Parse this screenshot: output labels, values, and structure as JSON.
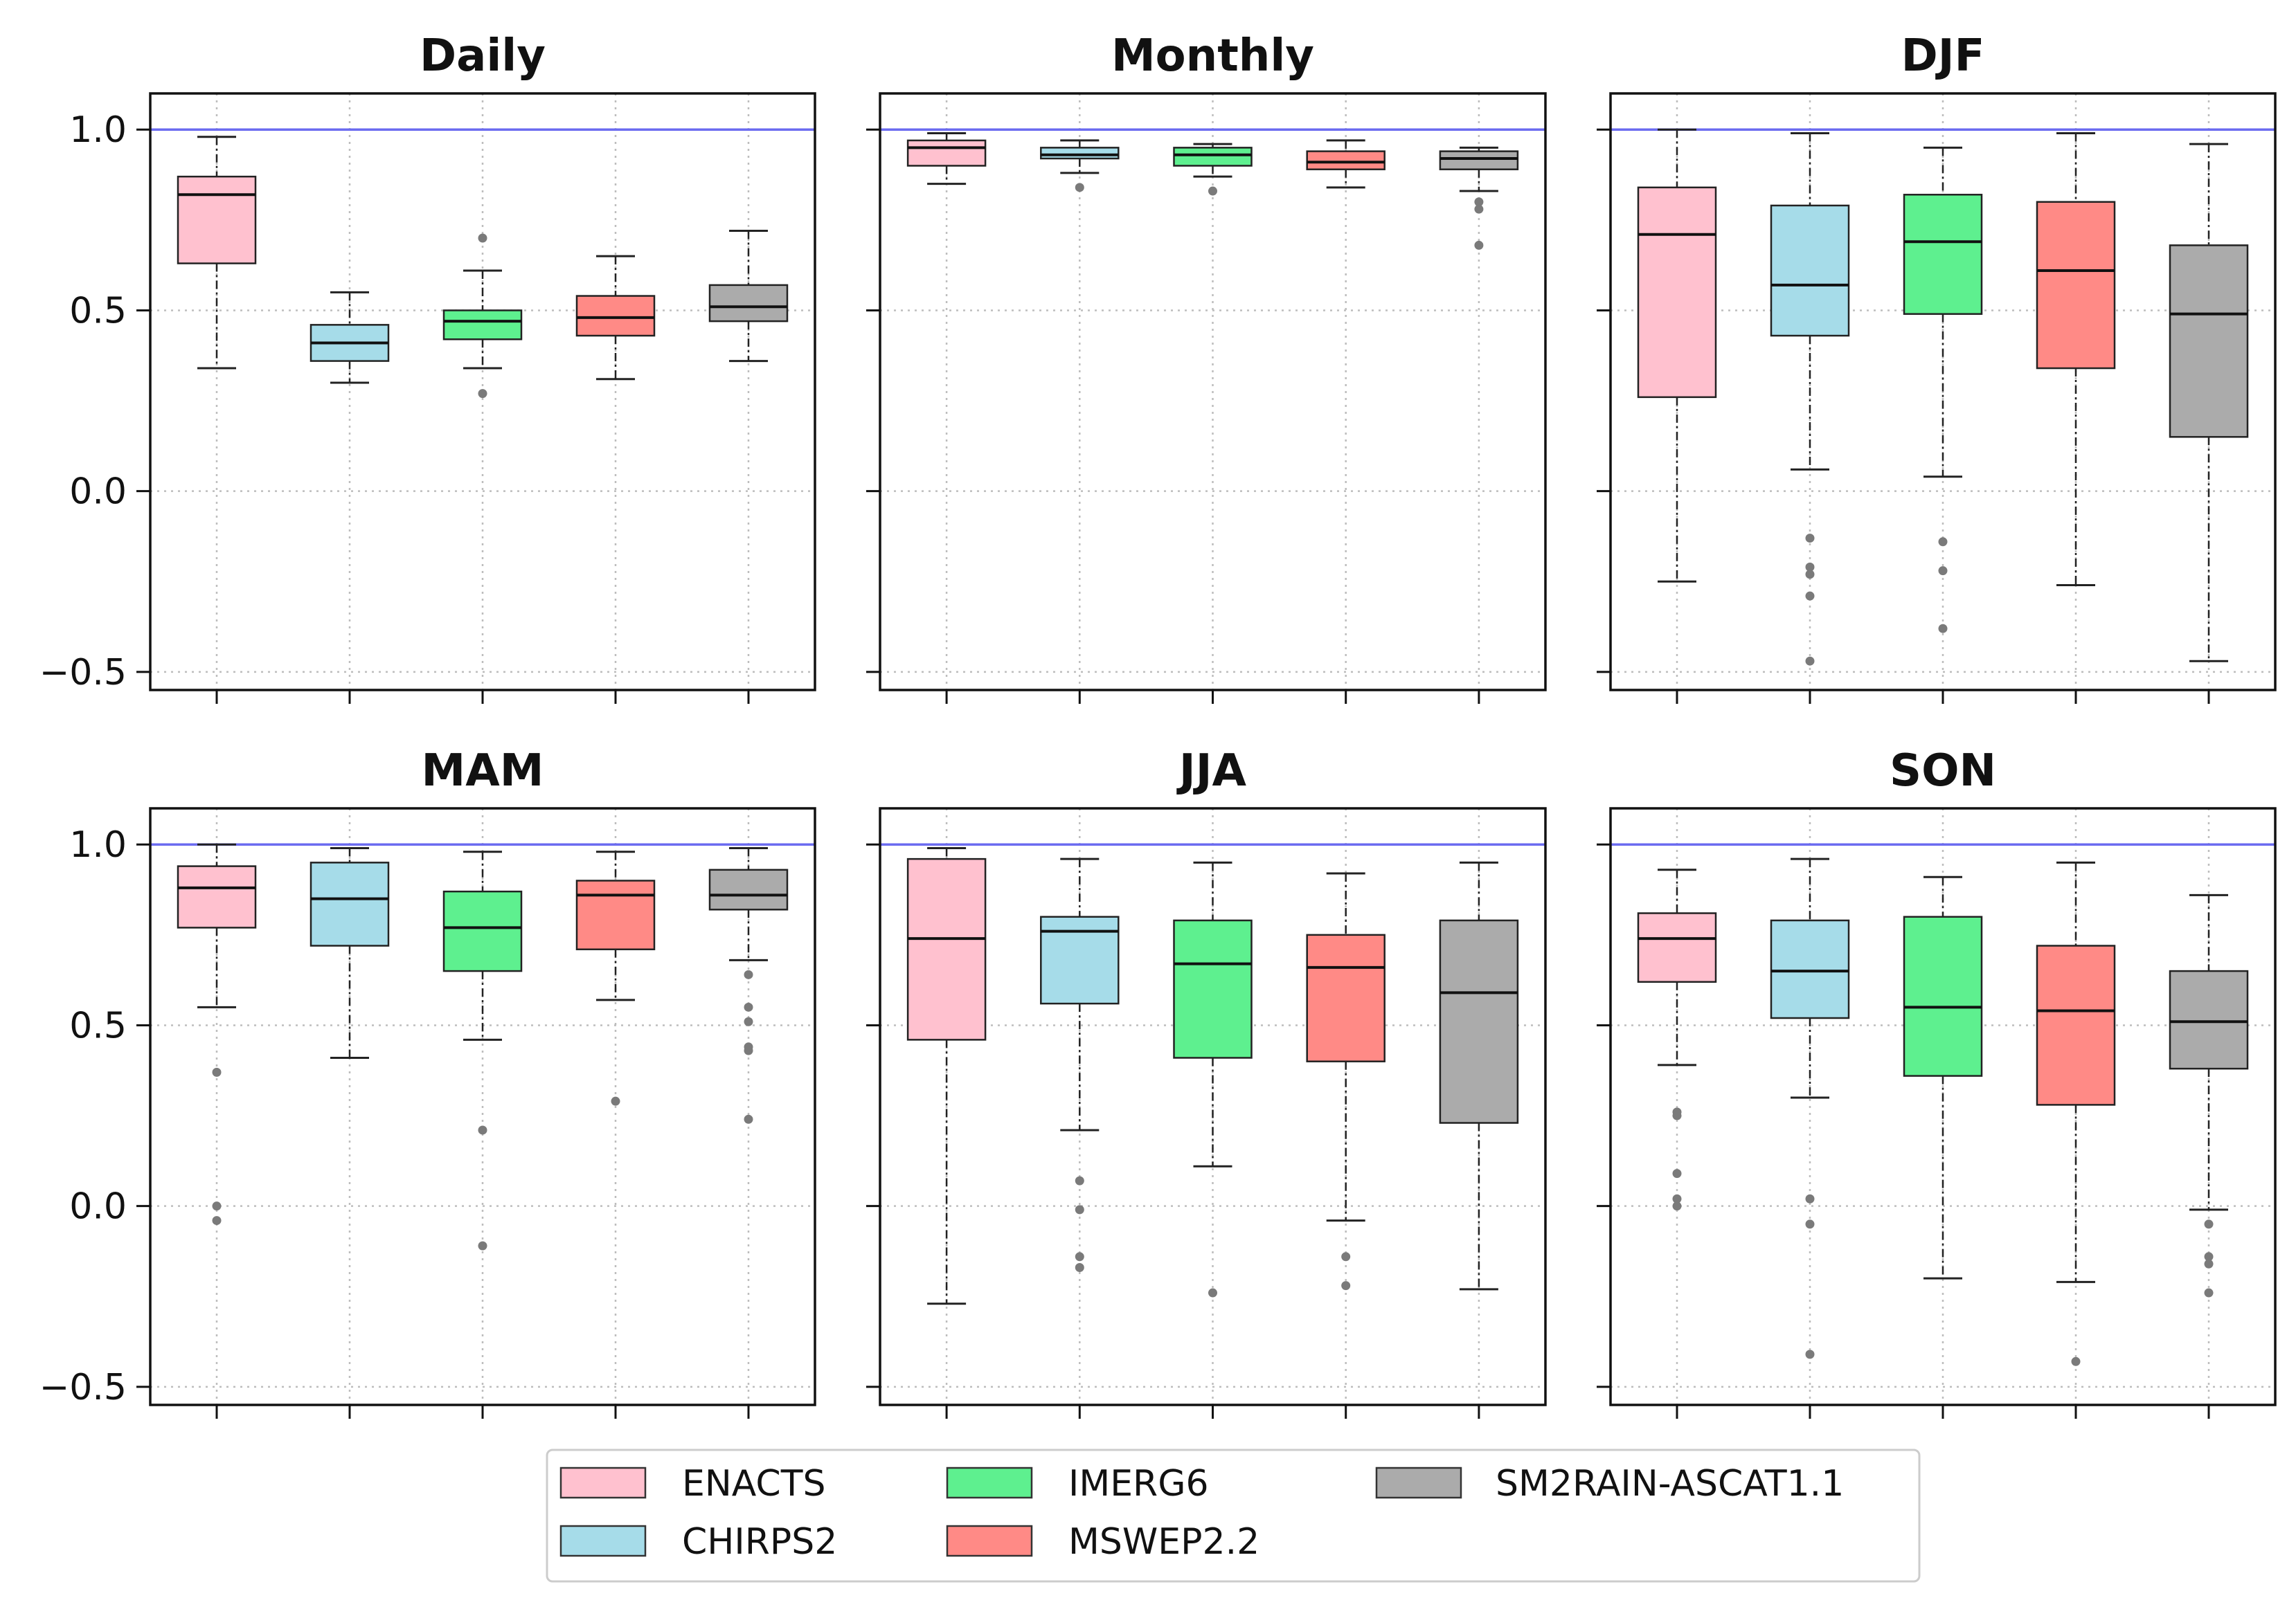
{
  "colors": {
    "ENACTS": "#ffc1cf",
    "CHIRPS2": "#a6dce9",
    "IMERG6": "#5ef08f",
    "MSWEP2.2": "#ff8a86",
    "SM2RAIN-ASCAT1.1": "#ababab",
    "reference_line": "#6b6bf0",
    "outlier": "#7a7a7a"
  },
  "legend": {
    "entries": [
      "ENACTS",
      "CHIRPS2",
      "IMERG6",
      "MSWEP2.2",
      "SM2RAIN-ASCAT1.1"
    ]
  },
  "chart_data": [
    {
      "type": "box",
      "title": "Daily",
      "ylim": [
        -0.55,
        1.1
      ],
      "yticks": [
        -0.5,
        0.0,
        0.5,
        1.0
      ],
      "ytick_labels": [
        "−0.5",
        "0.0",
        "0.5",
        "1.0"
      ],
      "reference_line": 1.0,
      "grid": true,
      "series": [
        {
          "name": "ENACTS",
          "q1": 0.63,
          "median": 0.82,
          "q3": 0.87,
          "whisker_low": 0.34,
          "whisker_high": 0.98,
          "outliers": []
        },
        {
          "name": "CHIRPS2",
          "q1": 0.36,
          "median": 0.41,
          "q3": 0.46,
          "whisker_low": 0.3,
          "whisker_high": 0.55,
          "outliers": []
        },
        {
          "name": "IMERG6",
          "q1": 0.42,
          "median": 0.47,
          "q3": 0.5,
          "whisker_low": 0.34,
          "whisker_high": 0.61,
          "outliers": [
            0.7,
            0.27
          ]
        },
        {
          "name": "MSWEP2.2",
          "q1": 0.43,
          "median": 0.48,
          "q3": 0.54,
          "whisker_low": 0.31,
          "whisker_high": 0.65,
          "outliers": []
        },
        {
          "name": "SM2RAIN-ASCAT1.1",
          "q1": 0.47,
          "median": 0.51,
          "q3": 0.57,
          "whisker_low": 0.36,
          "whisker_high": 0.72,
          "outliers": []
        }
      ]
    },
    {
      "type": "box",
      "title": "Monthly",
      "ylim": [
        -0.55,
        1.1
      ],
      "yticks": [
        -0.5,
        0.0,
        0.5,
        1.0
      ],
      "ytick_labels": [
        "−0.5",
        "0.0",
        "0.5",
        "1.0"
      ],
      "reference_line": 1.0,
      "grid": true,
      "series": [
        {
          "name": "ENACTS",
          "q1": 0.9,
          "median": 0.95,
          "q3": 0.97,
          "whisker_low": 0.85,
          "whisker_high": 0.99,
          "outliers": []
        },
        {
          "name": "CHIRPS2",
          "q1": 0.92,
          "median": 0.93,
          "q3": 0.95,
          "whisker_low": 0.88,
          "whisker_high": 0.97,
          "outliers": [
            0.84
          ]
        },
        {
          "name": "IMERG6",
          "q1": 0.9,
          "median": 0.93,
          "q3": 0.95,
          "whisker_low": 0.87,
          "whisker_high": 0.96,
          "outliers": [
            0.83
          ]
        },
        {
          "name": "MSWEP2.2",
          "q1": 0.89,
          "median": 0.91,
          "q3": 0.94,
          "whisker_low": 0.84,
          "whisker_high": 0.97,
          "outliers": []
        },
        {
          "name": "SM2RAIN-ASCAT1.1",
          "q1": 0.89,
          "median": 0.92,
          "q3": 0.94,
          "whisker_low": 0.83,
          "whisker_high": 0.95,
          "outliers": [
            0.8,
            0.78,
            0.68
          ]
        }
      ]
    },
    {
      "type": "box",
      "title": "DJF",
      "ylim": [
        -0.55,
        1.1
      ],
      "yticks": [
        -0.5,
        0.0,
        0.5,
        1.0
      ],
      "ytick_labels": [
        "−0.5",
        "0.0",
        "0.5",
        "1.0"
      ],
      "reference_line": 1.0,
      "grid": true,
      "series": [
        {
          "name": "ENACTS",
          "q1": 0.26,
          "median": 0.71,
          "q3": 0.84,
          "whisker_low": -0.25,
          "whisker_high": 1.0,
          "outliers": []
        },
        {
          "name": "CHIRPS2",
          "q1": 0.43,
          "median": 0.57,
          "q3": 0.79,
          "whisker_low": 0.06,
          "whisker_high": 0.99,
          "outliers": [
            -0.13,
            -0.21,
            -0.23,
            -0.29,
            -0.47
          ]
        },
        {
          "name": "IMERG6",
          "q1": 0.49,
          "median": 0.69,
          "q3": 0.82,
          "whisker_low": 0.04,
          "whisker_high": 0.95,
          "outliers": [
            -0.14,
            -0.22,
            -0.38
          ]
        },
        {
          "name": "MSWEP2.2",
          "q1": 0.34,
          "median": 0.61,
          "q3": 0.8,
          "whisker_low": -0.26,
          "whisker_high": 0.99,
          "outliers": []
        },
        {
          "name": "SM2RAIN-ASCAT1.1",
          "q1": 0.15,
          "median": 0.49,
          "q3": 0.68,
          "whisker_low": -0.47,
          "whisker_high": 0.96,
          "outliers": []
        }
      ]
    },
    {
      "type": "box",
      "title": "MAM",
      "ylim": [
        -0.55,
        1.1
      ],
      "yticks": [
        -0.5,
        0.0,
        0.5,
        1.0
      ],
      "ytick_labels": [
        "−0.5",
        "0.0",
        "0.5",
        "1.0"
      ],
      "reference_line": 1.0,
      "grid": true,
      "series": [
        {
          "name": "ENACTS",
          "q1": 0.77,
          "median": 0.88,
          "q3": 0.94,
          "whisker_low": 0.55,
          "whisker_high": 1.0,
          "outliers": [
            0.37,
            0.0,
            -0.04
          ]
        },
        {
          "name": "CHIRPS2",
          "q1": 0.72,
          "median": 0.85,
          "q3": 0.95,
          "whisker_low": 0.41,
          "whisker_high": 0.99,
          "outliers": []
        },
        {
          "name": "IMERG6",
          "q1": 0.65,
          "median": 0.77,
          "q3": 0.87,
          "whisker_low": 0.46,
          "whisker_high": 0.98,
          "outliers": [
            0.21,
            -0.11
          ]
        },
        {
          "name": "MSWEP2.2",
          "q1": 0.71,
          "median": 0.86,
          "q3": 0.9,
          "whisker_low": 0.57,
          "whisker_high": 0.98,
          "outliers": [
            0.29
          ]
        },
        {
          "name": "SM2RAIN-ASCAT1.1",
          "q1": 0.82,
          "median": 0.86,
          "q3": 0.93,
          "whisker_low": 0.68,
          "whisker_high": 0.99,
          "outliers": [
            0.64,
            0.55,
            0.51,
            0.44,
            0.43,
            0.24
          ]
        }
      ]
    },
    {
      "type": "box",
      "title": "JJA",
      "ylim": [
        -0.55,
        1.1
      ],
      "yticks": [
        -0.5,
        0.0,
        0.5,
        1.0
      ],
      "ytick_labels": [
        "−0.5",
        "0.0",
        "0.5",
        "1.0"
      ],
      "reference_line": 1.0,
      "grid": true,
      "series": [
        {
          "name": "ENACTS",
          "q1": 0.46,
          "median": 0.74,
          "q3": 0.96,
          "whisker_low": -0.27,
          "whisker_high": 0.99,
          "outliers": []
        },
        {
          "name": "CHIRPS2",
          "q1": 0.56,
          "median": 0.76,
          "q3": 0.8,
          "whisker_low": 0.21,
          "whisker_high": 0.96,
          "outliers": [
            0.07,
            -0.01,
            -0.14,
            -0.17
          ]
        },
        {
          "name": "IMERG6",
          "q1": 0.41,
          "median": 0.67,
          "q3": 0.79,
          "whisker_low": 0.11,
          "whisker_high": 0.95,
          "outliers": [
            -0.24
          ]
        },
        {
          "name": "MSWEP2.2",
          "q1": 0.4,
          "median": 0.66,
          "q3": 0.75,
          "whisker_low": -0.04,
          "whisker_high": 0.92,
          "outliers": [
            -0.14,
            -0.22
          ]
        },
        {
          "name": "SM2RAIN-ASCAT1.1",
          "q1": 0.23,
          "median": 0.59,
          "q3": 0.79,
          "whisker_low": -0.23,
          "whisker_high": 0.95,
          "outliers": []
        }
      ]
    },
    {
      "type": "box",
      "title": "SON",
      "ylim": [
        -0.55,
        1.1
      ],
      "yticks": [
        -0.5,
        0.0,
        0.5,
        1.0
      ],
      "ytick_labels": [
        "−0.5",
        "0.0",
        "0.5",
        "1.0"
      ],
      "reference_line": 1.0,
      "grid": true,
      "series": [
        {
          "name": "ENACTS",
          "q1": 0.62,
          "median": 0.74,
          "q3": 0.81,
          "whisker_low": 0.39,
          "whisker_high": 0.93,
          "outliers": [
            0.26,
            0.25,
            0.09,
            0.02,
            0.0
          ]
        },
        {
          "name": "CHIRPS2",
          "q1": 0.52,
          "median": 0.65,
          "q3": 0.79,
          "whisker_low": 0.3,
          "whisker_high": 0.96,
          "outliers": [
            0.02,
            -0.05,
            -0.41
          ]
        },
        {
          "name": "IMERG6",
          "q1": 0.36,
          "median": 0.55,
          "q3": 0.8,
          "whisker_low": -0.2,
          "whisker_high": 0.91,
          "outliers": []
        },
        {
          "name": "MSWEP2.2",
          "q1": 0.28,
          "median": 0.54,
          "q3": 0.72,
          "whisker_low": -0.21,
          "whisker_high": 0.95,
          "outliers": [
            -0.43
          ]
        },
        {
          "name": "SM2RAIN-ASCAT1.1",
          "q1": 0.38,
          "median": 0.51,
          "q3": 0.65,
          "whisker_low": -0.01,
          "whisker_high": 0.86,
          "outliers": [
            -0.05,
            -0.14,
            -0.16,
            -0.24
          ]
        }
      ]
    }
  ]
}
